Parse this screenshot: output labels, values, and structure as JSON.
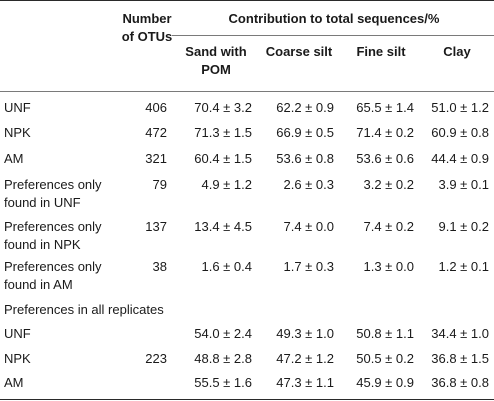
{
  "header": {
    "otu_col": [
      "Number",
      "of OTUs"
    ],
    "group": "Contribution to total sequences/%",
    "cols": [
      [
        "Sand with",
        "POM"
      ],
      [
        "Coarse silt"
      ],
      [
        "Fine silt"
      ],
      [
        "Clay"
      ]
    ]
  },
  "rows": [
    {
      "label": [
        "UNF"
      ],
      "otus": "406",
      "vals": [
        "70.4 ± 3.2",
        "62.2 ± 0.9",
        "65.5 ± 1.4",
        "51.0 ± 1.2"
      ]
    },
    {
      "label": [
        "NPK"
      ],
      "otus": "472",
      "vals": [
        "71.3 ± 1.5",
        "66.9 ± 0.5",
        "71.4 ± 0.2",
        "60.9 ± 0.8"
      ]
    },
    {
      "label": [
        "AM"
      ],
      "otus": "321",
      "vals": [
        "60.4 ± 1.5",
        "53.6 ± 0.8",
        "53.6 ± 0.6",
        "44.4 ± 0.9"
      ]
    },
    {
      "label": [
        "Preferences only",
        "found in UNF"
      ],
      "otus": "79",
      "vals": [
        "4.9 ± 1.2",
        "2.6 ± 0.3",
        "3.2 ± 0.2",
        "3.9 ± 0.1"
      ]
    },
    {
      "label": [
        "Preferences only",
        "found in NPK"
      ],
      "otus": "137",
      "vals": [
        "13.4 ± 4.5",
        "7.4 ± 0.0",
        "7.4 ± 0.2",
        "9.1 ± 0.2"
      ]
    },
    {
      "label": [
        "Preferences only",
        "found in AM"
      ],
      "otus": "38",
      "vals": [
        "1.6 ± 0.4",
        "1.7 ± 0.3",
        "1.3 ± 0.0",
        "1.2 ± 0.1"
      ]
    }
  ],
  "section_label": "Preferences in all replicates",
  "section_rows": [
    {
      "label": [
        "UNF"
      ],
      "otus": "",
      "vals": [
        "54.0 ± 2.4",
        "49.3 ± 1.0",
        "50.8 ± 1.1",
        "34.4 ± 1.0"
      ]
    },
    {
      "label": [
        "NPK"
      ],
      "otus": "223",
      "vals": [
        "48.8 ± 2.8",
        "47.2 ± 1.2",
        "50.5 ± 0.2",
        "36.8 ± 1.5"
      ]
    },
    {
      "label": [
        "AM"
      ],
      "otus": "",
      "vals": [
        "55.5 ± 1.6",
        "47.3 ± 1.1",
        "45.9 ± 0.9",
        "36.8 ± 0.8"
      ]
    }
  ]
}
